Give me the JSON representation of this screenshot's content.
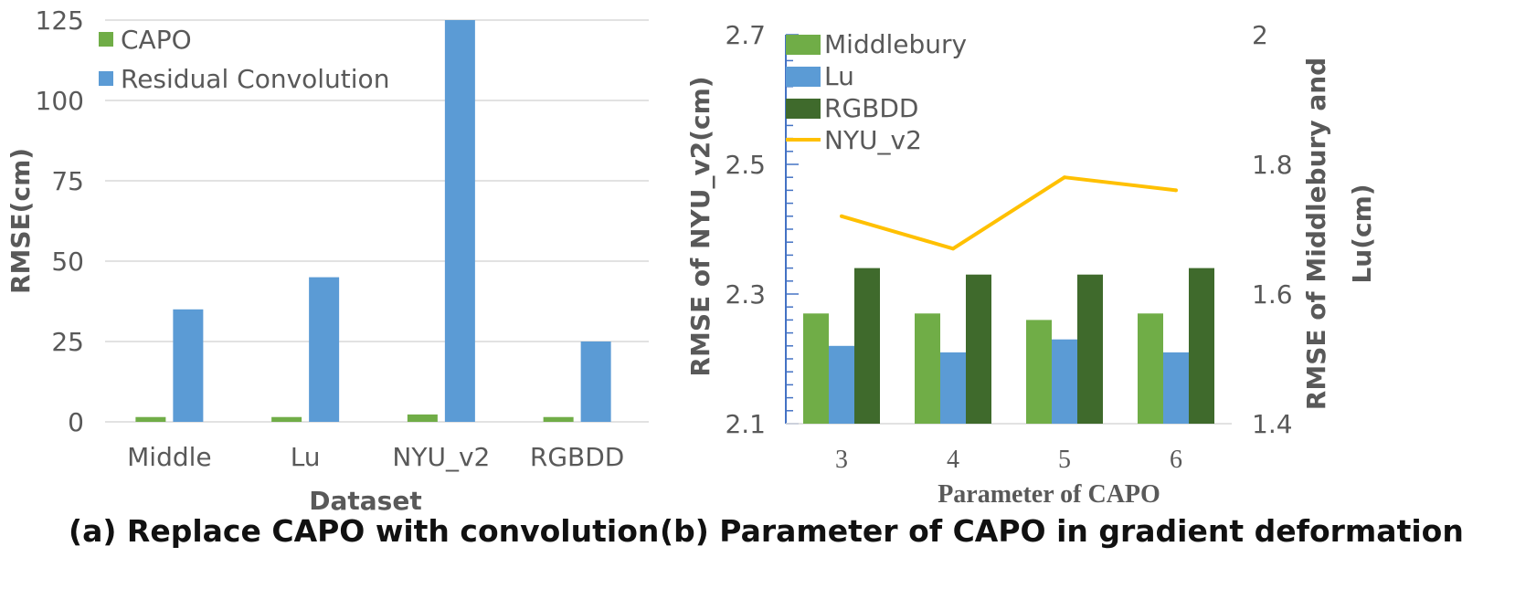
{
  "captions": {
    "a": "(a) Replace CAPO with convolution",
    "b": "(b) Parameter of CAPO in gradient deformation"
  },
  "colors": {
    "capo": "#70ad47",
    "residual": "#5b9bd5",
    "middlebury": "#70ad47",
    "lu": "#5b9bd5",
    "rgbdd": "#3f6a2c",
    "nyu": "#ffc000",
    "grid": "#d9d9d9",
    "axis_blue": "#4472c4",
    "text": "#595959"
  },
  "chart_data": [
    {
      "id": "a",
      "type": "bar",
      "categories": [
        "Middle",
        "Lu",
        "NYU_v2",
        "RGBDD"
      ],
      "series": [
        {
          "name": "CAPO",
          "values": [
            1.5,
            1.5,
            2.3,
            1.5
          ]
        },
        {
          "name": "Residual Convolution",
          "values": [
            35,
            45,
            125,
            25
          ]
        }
      ],
      "xlabel": "Dataset",
      "ylabel": "RMSE(cm)",
      "ylim": [
        0,
        125
      ],
      "yticks": [
        "0",
        "25",
        "50",
        "75",
        "100",
        "125"
      ],
      "grid": true,
      "legend": "top-left"
    },
    {
      "id": "b",
      "type": "bar",
      "categories": [
        "3",
        "4",
        "5",
        "6"
      ],
      "series": [
        {
          "name": "Middlebury",
          "axis": "right",
          "values": [
            1.57,
            1.57,
            1.56,
            1.57
          ]
        },
        {
          "name": "Lu",
          "axis": "right",
          "values": [
            1.52,
            1.51,
            1.53,
            1.51
          ]
        },
        {
          "name": "RGBDD",
          "axis": "left",
          "values": [
            2.34,
            2.33,
            2.33,
            2.34
          ]
        },
        {
          "name": "NYU_v2",
          "axis": "left",
          "type": "line",
          "values": [
            2.42,
            2.37,
            2.48,
            2.46
          ]
        }
      ],
      "xlabel": "Parameter of CAPO",
      "ylabel": "RMSE of NYU_v2(cm)",
      "y2label": "RMSE of Middlebury and Lu(cm)",
      "ylim": [
        2.1,
        2.7
      ],
      "yticks": [
        "2.1",
        "2.3",
        "2.5",
        "2.7"
      ],
      "y2lim": [
        1.4,
        2.0
      ],
      "y2ticks": [
        "1.4",
        "1.6",
        "1.8",
        "2"
      ],
      "grid": false,
      "legend": "top-left"
    }
  ]
}
